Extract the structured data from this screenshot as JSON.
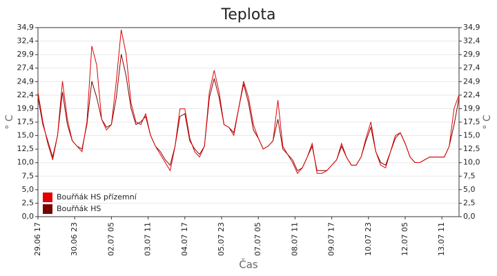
{
  "chart_data": {
    "type": "line",
    "title": "Teplota",
    "x_label": "Čas",
    "y_label": "° C",
    "x": [
      0,
      4,
      8,
      12,
      16,
      20,
      24,
      28,
      32,
      36,
      40,
      44,
      48,
      52,
      56,
      60,
      64,
      68,
      72,
      76,
      80,
      84,
      88,
      92,
      96,
      100,
      104,
      108,
      112,
      116,
      120,
      124,
      128,
      132,
      136,
      140,
      144,
      148,
      152,
      156,
      160,
      164,
      168,
      172,
      176,
      180,
      184,
      188,
      192,
      196,
      200,
      204,
      208,
      212,
      216,
      220,
      224,
      228,
      232,
      236,
      240,
      244,
      248,
      252,
      256,
      260,
      264,
      268,
      272,
      276,
      280,
      284,
      288,
      292,
      296,
      300,
      304,
      308,
      312,
      316,
      320,
      324,
      328,
      332,
      336,
      340,
      344
    ],
    "series": [
      {
        "name": "Bouřňák HS přízemní",
        "color": "#e00000",
        "values": [
          23,
          17.5,
          13.5,
          10.5,
          15,
          25,
          18,
          14,
          13,
          12,
          17.5,
          31.5,
          28,
          18,
          16,
          17,
          25,
          34.5,
          30,
          21,
          17.5,
          17,
          19,
          15,
          13,
          11.5,
          10,
          8.5,
          13,
          19.9,
          19.9,
          14.5,
          12,
          11,
          13,
          23,
          27,
          23,
          17,
          16.5,
          15,
          20,
          25,
          22,
          17,
          14.5,
          12.5,
          13,
          14,
          21.5,
          13,
          11.5,
          10,
          8,
          9,
          11,
          13.5,
          8,
          8,
          8.5,
          9.5,
          10.5,
          13.5,
          11,
          9.5,
          9.5,
          11,
          14.5,
          17.5,
          12,
          9.5,
          9,
          12,
          15,
          15.5,
          13.5,
          11,
          10,
          10,
          10.5,
          11,
          11,
          11,
          11,
          13,
          20,
          22.5
        ]
      },
      {
        "name": "Bouřňák HS",
        "color": "#7a0000",
        "values": [
          22,
          17,
          14,
          11,
          15,
          23,
          17,
          14,
          13,
          12.5,
          17,
          25,
          22,
          18,
          16.5,
          17,
          22,
          30,
          26,
          20,
          17,
          17.5,
          18.5,
          15,
          13,
          12,
          10.5,
          9.5,
          13,
          18.5,
          19,
          14,
          12.5,
          11.5,
          13,
          22,
          25.5,
          22,
          17,
          16.5,
          15.5,
          20,
          24.5,
          21,
          16,
          14.5,
          12.5,
          13,
          14,
          18,
          12.5,
          11.5,
          10.5,
          8.5,
          9,
          11,
          13,
          8.5,
          8.5,
          8.5,
          9.5,
          10.5,
          13,
          11,
          9.5,
          9.5,
          11,
          14,
          16.5,
          12,
          10,
          9.5,
          12,
          14.5,
          15.5,
          13.5,
          11,
          10,
          10,
          10.5,
          11,
          11,
          11,
          11,
          13,
          17,
          22
        ]
      }
    ],
    "xlim": [
      0,
      344
    ],
    "xticks": [
      {
        "value": 0,
        "label": "29.06 17"
      },
      {
        "value": 30,
        "label": "30.06 23"
      },
      {
        "value": 60,
        "label": "02.07 05"
      },
      {
        "value": 90,
        "label": "03.07 11"
      },
      {
        "value": 120,
        "label": "04.07 17"
      },
      {
        "value": 150,
        "label": "05.07 23"
      },
      {
        "value": 180,
        "label": "07.07 05"
      },
      {
        "value": 210,
        "label": "08.07 11"
      },
      {
        "value": 240,
        "label": "09.07 17"
      },
      {
        "value": 270,
        "label": "10.07 23"
      },
      {
        "value": 300,
        "label": "12.07 05"
      },
      {
        "value": 330,
        "label": "13.07 11"
      }
    ],
    "ylim": [
      0,
      34.9
    ],
    "yticks": [
      {
        "value": 0,
        "label": "0,0"
      },
      {
        "value": 2.49,
        "label": "2,5"
      },
      {
        "value": 4.99,
        "label": "5,0"
      },
      {
        "value": 7.48,
        "label": "7,5"
      },
      {
        "value": 9.97,
        "label": "10,0"
      },
      {
        "value": 12.46,
        "label": "12,5"
      },
      {
        "value": 14.96,
        "label": "15,0"
      },
      {
        "value": 17.45,
        "label": "17,5"
      },
      {
        "value": 19.94,
        "label": "19,9"
      },
      {
        "value": 22.44,
        "label": "22,4"
      },
      {
        "value": 24.93,
        "label": "24,9"
      },
      {
        "value": 27.42,
        "label": "27,4"
      },
      {
        "value": 29.91,
        "label": "29,9"
      },
      {
        "value": 32.41,
        "label": "32,4"
      },
      {
        "value": 34.9,
        "label": "34,9"
      }
    ],
    "grid": true,
    "legend": "lower left"
  }
}
